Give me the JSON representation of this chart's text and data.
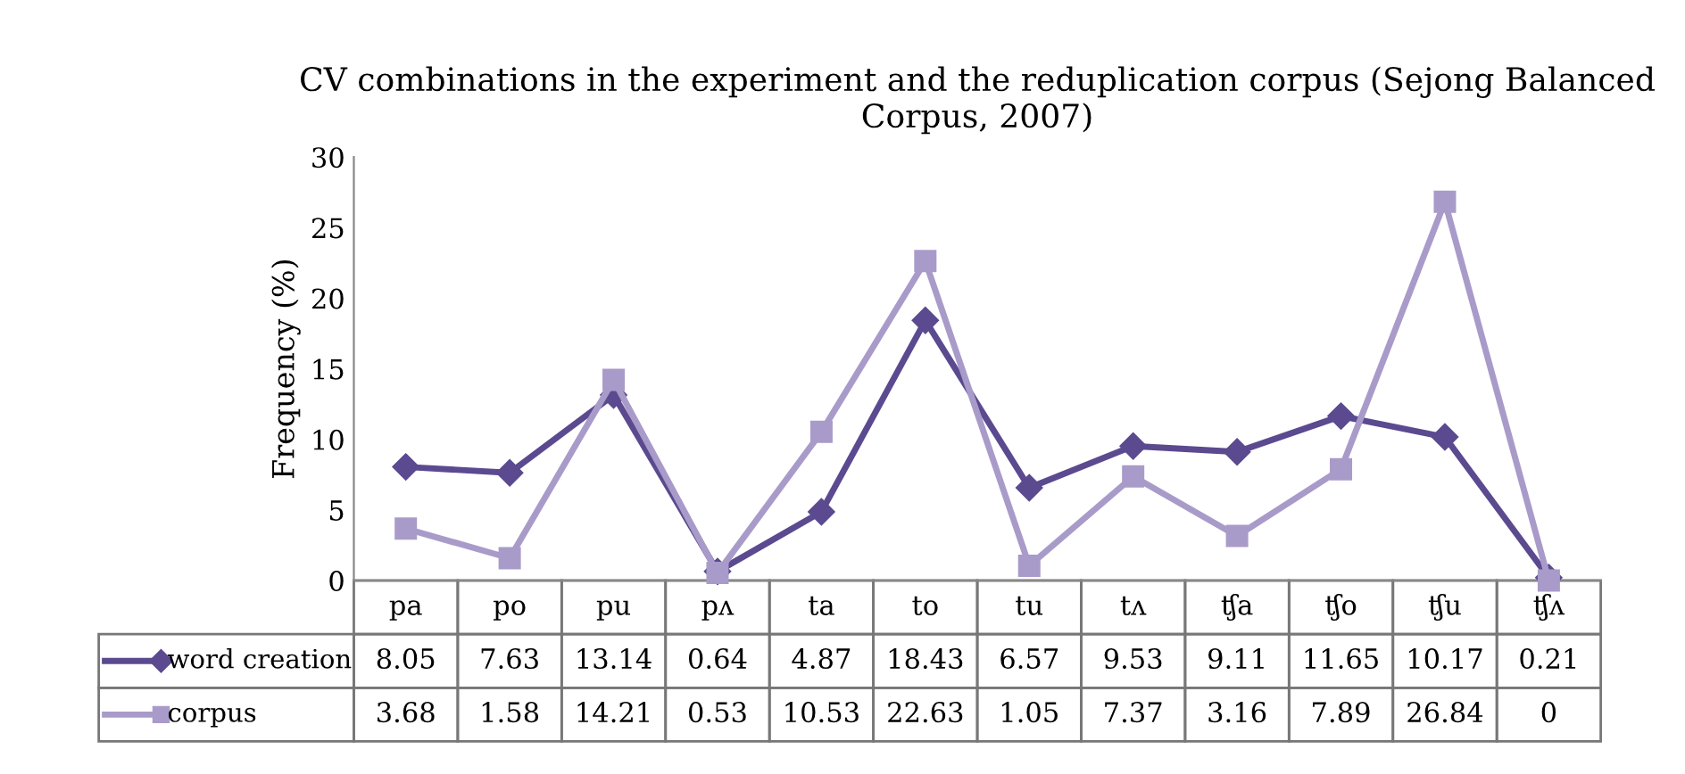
{
  "chart_data": {
    "type": "line",
    "title": "CV combinations in the experiment and the reduplication corpus (Sejong Balanced Corpus, 2007)",
    "ylabel": "Frequency (%)",
    "categories": [
      "pa",
      "po",
      "pu",
      "pʌ",
      "ta",
      "to",
      "tu",
      "tʌ",
      "ʧa",
      "ʧo",
      "ʧu",
      "ʧʌ"
    ],
    "series": [
      {
        "name": "word creation",
        "color": "#5b4a8f",
        "marker": "diamond",
        "values": [
          8.05,
          7.63,
          13.14,
          0.64,
          4.87,
          18.43,
          6.57,
          9.53,
          9.11,
          11.65,
          10.17,
          0.21
        ]
      },
      {
        "name": "corpus",
        "color": "#a99bc9",
        "marker": "square",
        "values": [
          3.68,
          1.58,
          14.21,
          0.53,
          10.53,
          22.63,
          1.05,
          7.37,
          3.16,
          7.89,
          26.84,
          0
        ]
      }
    ],
    "ylim": [
      0,
      30
    ],
    "yticks": [
      0,
      5,
      10,
      15,
      20,
      25,
      30
    ],
    "grid": false,
    "legend": "bottom left",
    "data_labels": true,
    "line_style": "solid"
  }
}
